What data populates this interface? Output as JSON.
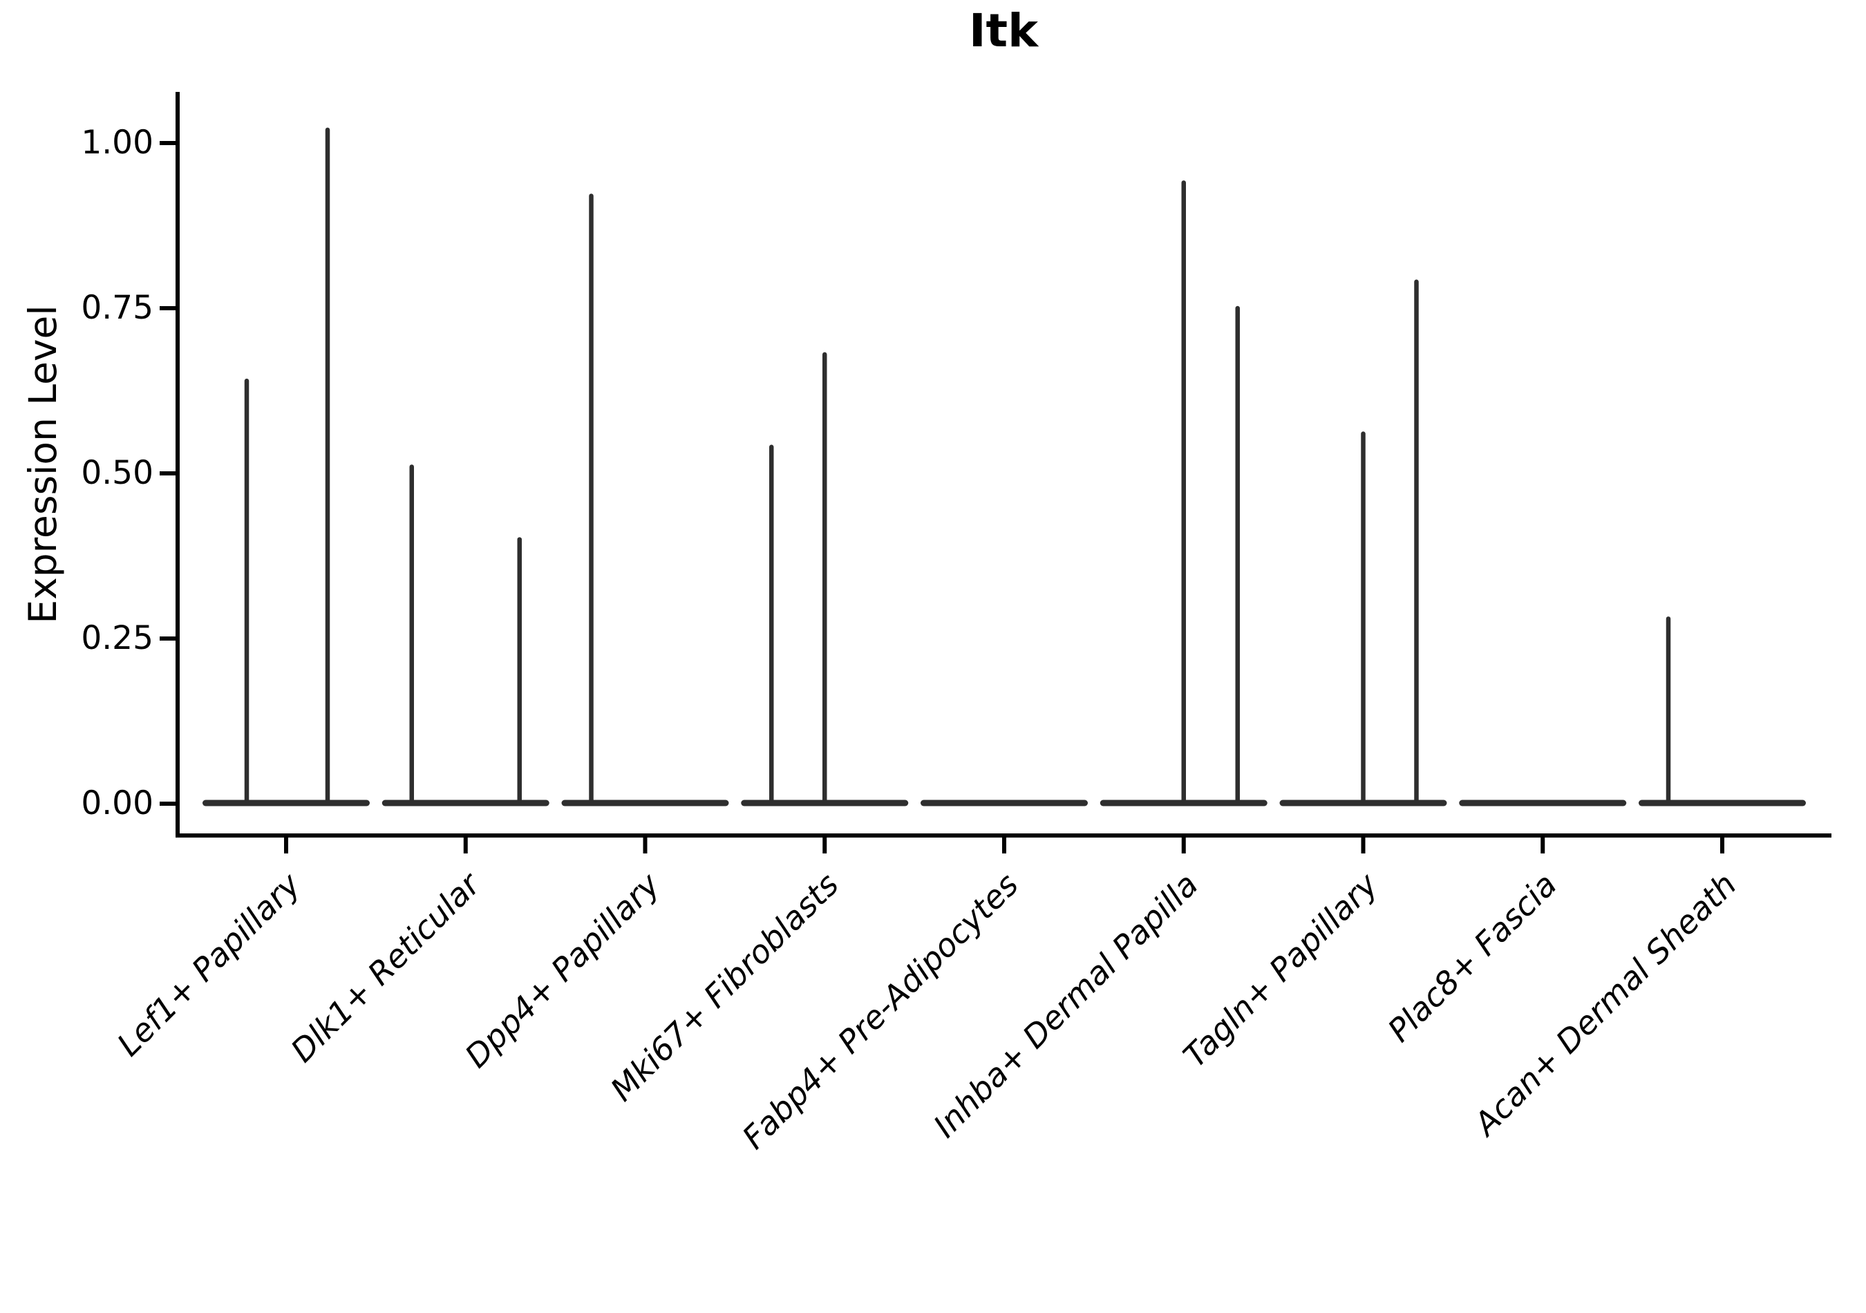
{
  "chart_data": {
    "type": "violin",
    "title": "Itk",
    "ylabel": "Expression Level",
    "xlabel": "",
    "ylim": [
      -0.05,
      1.08
    ],
    "grid": false,
    "legend": "none",
    "y_ticks": [
      {
        "value": 0.0,
        "label": "0.00"
      },
      {
        "value": 0.25,
        "label": "0.25"
      },
      {
        "value": 0.5,
        "label": "0.50"
      },
      {
        "value": 0.75,
        "label": "0.75"
      },
      {
        "value": 1.0,
        "label": "1.00"
      }
    ],
    "description": "Violin plot of Itk expression per fibroblast cluster; most cells at 0 (flat violin bases) with narrow spikes up to the max expression values listed per violin.",
    "categories": [
      {
        "label": "Lef1+ Papillary",
        "spikes": [
          {
            "offset": -57,
            "max": 0.64
          },
          {
            "offset": 60,
            "max": 1.02
          }
        ]
      },
      {
        "label": "Dlk1+ Reticular",
        "spikes": [
          {
            "offset": -78,
            "max": 0.51
          },
          {
            "offset": 78,
            "max": 0.4
          }
        ]
      },
      {
        "label": "Dpp4+ Papillary",
        "spikes": [
          {
            "offset": -78,
            "max": 0.92
          }
        ]
      },
      {
        "label": "Mki67+ Fibroblasts",
        "spikes": [
          {
            "offset": -77,
            "max": 0.54
          },
          {
            "offset": 0,
            "max": 0.68
          }
        ]
      },
      {
        "label": "Fabp4+ Pre-Adipocytes",
        "spikes": []
      },
      {
        "label": "Inhba+ Dermal Papilla",
        "spikes": [
          {
            "offset": 0,
            "max": 0.94
          },
          {
            "offset": 78,
            "max": 0.75
          }
        ]
      },
      {
        "label": "Tagln+ Papillary",
        "spikes": [
          {
            "offset": 0,
            "max": 0.56
          },
          {
            "offset": 77,
            "max": 0.79
          }
        ]
      },
      {
        "label": "Plac8+ Fascia",
        "spikes": []
      },
      {
        "label": "Acan+ Dermal Sheath",
        "spikes": [
          {
            "offset": -78,
            "max": 0.28
          }
        ]
      }
    ],
    "colors": {
      "violin": "#2e2e2e",
      "axis": "#000000",
      "text": "#000000",
      "background": "#ffffff"
    }
  }
}
